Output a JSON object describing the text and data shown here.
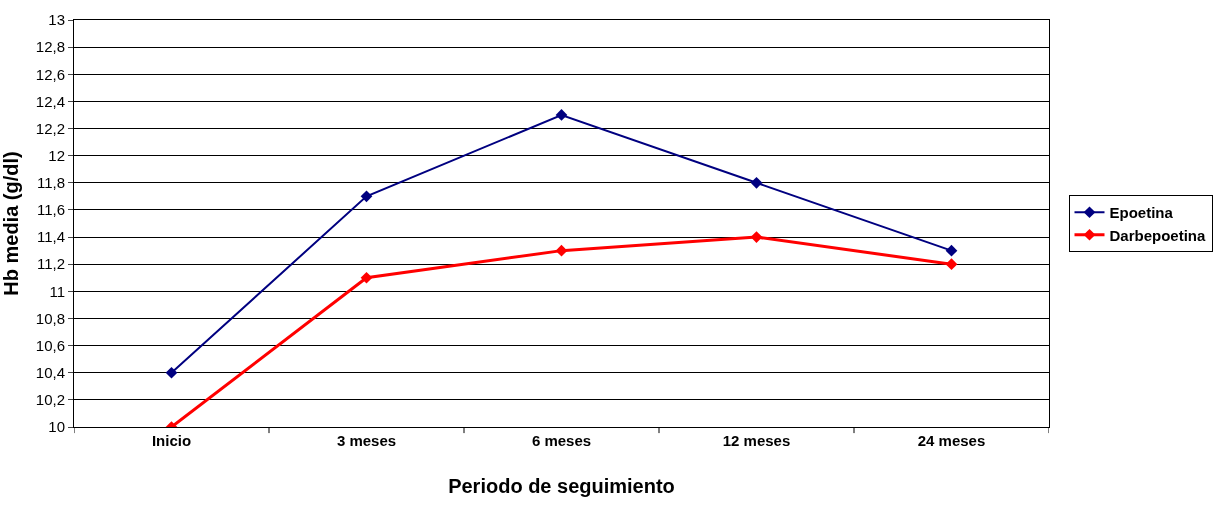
{
  "chart_data": {
    "type": "line",
    "xlabel": "Periodo de seguimiento",
    "ylabel": "Hb media (g/dl)",
    "categories": [
      "Inicio",
      "3 meses",
      "6 meses",
      "12 meses",
      "24 meses"
    ],
    "series": [
      {
        "name": "Epoetina",
        "color": "#000080",
        "values": [
          10.4,
          11.7,
          12.3,
          11.8,
          11.3
        ]
      },
      {
        "name": "Darbepoetina",
        "color": "#ff0000",
        "values": [
          10,
          11.1,
          11.3,
          11.4,
          11.2
        ]
      }
    ],
    "ylim": [
      10,
      13
    ],
    "yticks": [
      10,
      {
        "value": 10.2,
        "label": "10,2"
      },
      {
        "value": 10.4,
        "label": "10,4"
      },
      {
        "value": 10.6,
        "label": "10,6"
      },
      {
        "value": 10.8,
        "label": "10,8"
      },
      11,
      {
        "value": 11.2,
        "label": "11,2"
      },
      {
        "value": 11.4,
        "label": "11,4"
      },
      {
        "value": 11.6,
        "label": "11,6"
      },
      {
        "value": 11.8,
        "label": "11,8"
      },
      12,
      {
        "value": 12.2,
        "label": "12,2"
      },
      {
        "value": 12.4,
        "label": "12,4"
      },
      {
        "value": 12.6,
        "label": "12,6"
      },
      {
        "value": 12.8,
        "label": "12,8"
      },
      13
    ],
    "grid": "y",
    "legend": "right",
    "marker": "diamond",
    "line_style": "solid"
  }
}
